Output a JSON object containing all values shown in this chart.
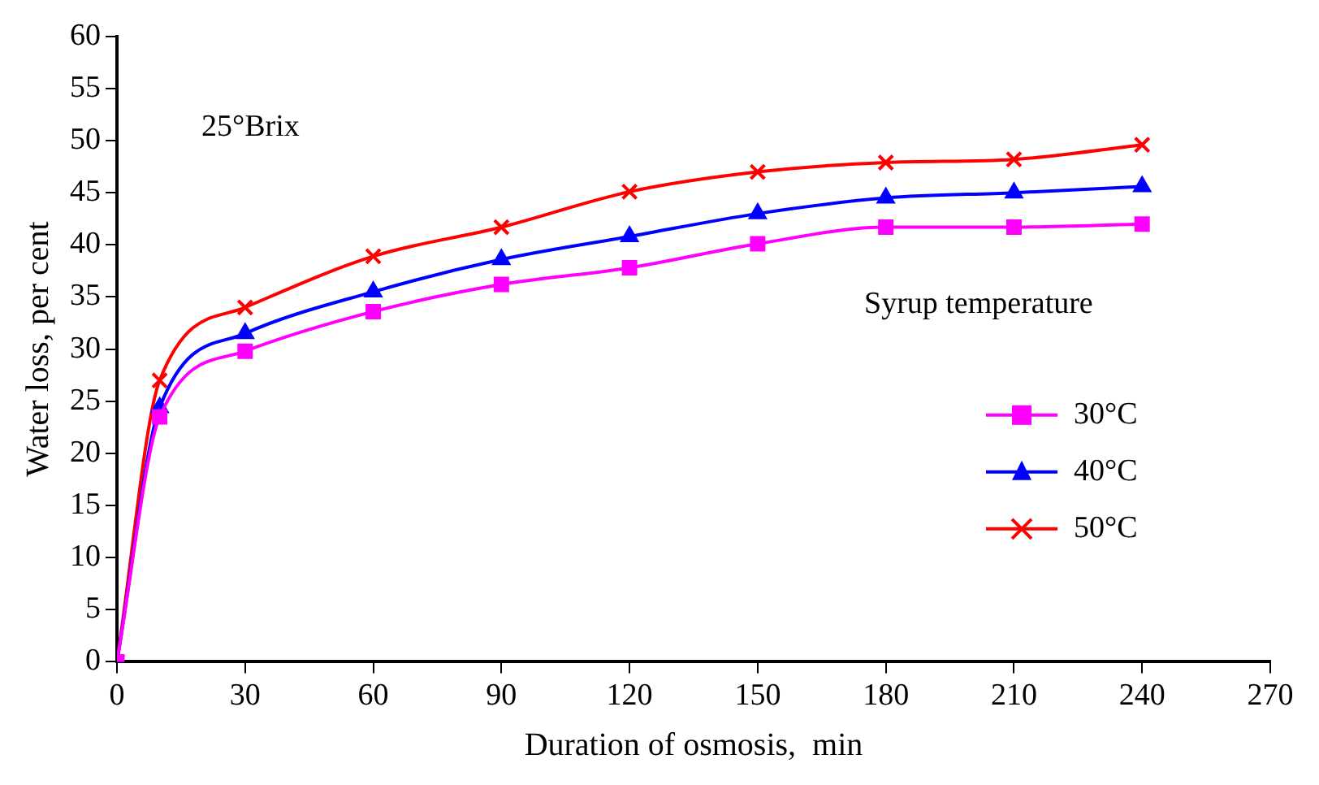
{
  "chart_data": {
    "type": "line",
    "xlabel": "Duration of osmosis,  min",
    "ylabel": "Water loss, per cent",
    "legend_title": "Syrup temperature",
    "legend": "right",
    "grid": false,
    "x": [
      0,
      10,
      30,
      60,
      90,
      120,
      150,
      180,
      210,
      240
    ],
    "xlim": [
      0,
      270
    ],
    "xticks": [
      0,
      30,
      60,
      90,
      120,
      150,
      180,
      210,
      240,
      270
    ],
    "ylim": [
      0,
      60
    ],
    "yticks": [
      0,
      5,
      10,
      15,
      20,
      25,
      30,
      35,
      40,
      45,
      50,
      55,
      60
    ],
    "annotations": [
      "25°Brix"
    ],
    "series": [
      {
        "name": "30°C",
        "color": "#ff00ff",
        "marker": "square",
        "values": [
          0,
          23.5,
          29.8,
          33.6,
          36.2,
          37.8,
          40.1,
          41.7,
          41.7,
          42.0
        ]
      },
      {
        "name": "40°C",
        "color": "#0000ff",
        "marker": "triangle",
        "values": [
          0,
          24.4,
          31.5,
          35.5,
          38.6,
          40.8,
          43.0,
          44.5,
          45.0,
          45.6
        ]
      },
      {
        "name": "50°C",
        "color": "#ff0000",
        "marker": "cross",
        "values": [
          0,
          27.0,
          34.0,
          38.9,
          41.7,
          45.1,
          47.0,
          47.9,
          48.2,
          49.6
        ]
      }
    ]
  }
}
